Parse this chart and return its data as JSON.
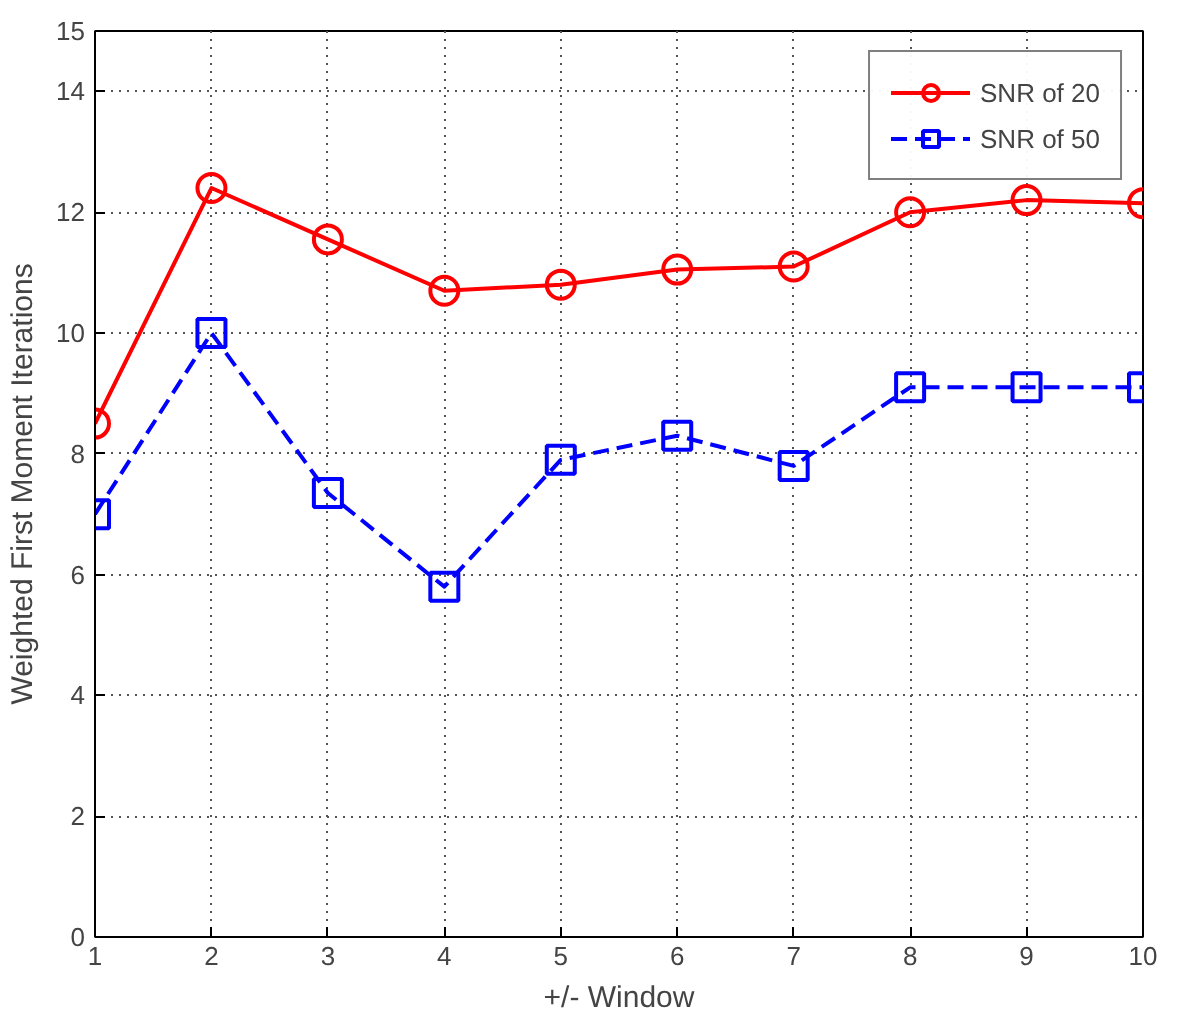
{
  "chart_data": {
    "type": "line",
    "xlabel": "+/- Window",
    "ylabel": "Weighted First Moment Iterations",
    "x": [
      1,
      2,
      3,
      4,
      5,
      6,
      7,
      8,
      9,
      10
    ],
    "xlim": [
      1,
      10
    ],
    "xticks": [
      1,
      2,
      3,
      4,
      5,
      6,
      7,
      8,
      9,
      10
    ],
    "ylim": [
      0,
      15
    ],
    "yticks": [
      0,
      2,
      4,
      6,
      8,
      10,
      12,
      14,
      15
    ],
    "grid": true,
    "legend": "top right",
    "series": [
      {
        "name": "SNR of 20",
        "color": "#ff0000",
        "marker": "circle",
        "line_style": "solid",
        "values": [
          8.5,
          12.4,
          11.55,
          10.7,
          10.8,
          11.05,
          11.1,
          12.0,
          12.2,
          12.15
        ]
      },
      {
        "name": "SNR of 50",
        "color": "#0000ff",
        "marker": "square",
        "line_style": "dashed",
        "values": [
          7.0,
          10.0,
          7.35,
          5.8,
          7.9,
          8.3,
          7.8,
          9.1,
          9.1,
          9.1
        ]
      }
    ]
  }
}
